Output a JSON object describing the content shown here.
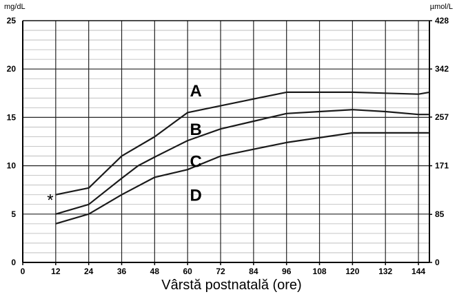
{
  "chart_data": {
    "type": "line",
    "title": "",
    "xlabel": "Vârstă postnatală (ore)",
    "ylabel_left": "mg/dL",
    "ylabel_right": "µmol/L",
    "xlim": [
      0,
      148
    ],
    "ylim": [
      0,
      25
    ],
    "x_ticks": [
      0,
      12,
      24,
      36,
      48,
      60,
      72,
      84,
      96,
      108,
      120,
      132,
      144
    ],
    "x_tick_labels": [
      "0",
      "12",
      "24",
      "36",
      "48",
      "60",
      "72",
      "84",
      "96",
      "108",
      "120",
      "132",
      "144"
    ],
    "y_ticks_left": [
      0,
      5,
      10,
      15,
      20,
      25
    ],
    "y_tick_labels_left": [
      "0",
      "5",
      "10",
      "15",
      "20",
      "25"
    ],
    "y_ticks_right": [
      0,
      4.97,
      10,
      15.03,
      20,
      25
    ],
    "y_tick_labels_right": [
      "0",
      "85",
      "171",
      "257",
      "342",
      "428"
    ],
    "grid": true,
    "minor_grid_step": 1,
    "line_color": "#1a1a1a",
    "series": [
      {
        "x": [
          12,
          24,
          36,
          48,
          60,
          72,
          84,
          96,
          108,
          120,
          132,
          144,
          148
        ],
        "y": [
          7.0,
          7.7,
          11.0,
          13.0,
          15.5,
          16.2,
          16.9,
          17.6,
          17.6,
          17.6,
          17.5,
          17.4,
          17.6
        ]
      },
      {
        "x": [
          12,
          24,
          36,
          42,
          48,
          60,
          72,
          84,
          96,
          108,
          120,
          132,
          144,
          148
        ],
        "y": [
          5.0,
          6.0,
          8.7,
          10.0,
          10.9,
          12.6,
          13.8,
          14.6,
          15.4,
          15.6,
          15.8,
          15.6,
          15.3,
          15.3
        ]
      },
      {
        "x": [
          12,
          24,
          36,
          48,
          60,
          72,
          84,
          96,
          108,
          120,
          132,
          144,
          148
        ],
        "y": [
          4.0,
          5.0,
          7.0,
          8.8,
          9.6,
          11.0,
          11.7,
          12.4,
          12.9,
          13.4,
          13.4,
          13.4,
          13.4
        ]
      }
    ],
    "zone_labels": [
      {
        "text": "A",
        "x": 63,
        "y": 17.8
      },
      {
        "text": "B",
        "x": 63,
        "y": 13.8
      },
      {
        "text": "C",
        "x": 63,
        "y": 10.5
      },
      {
        "text": "D",
        "x": 63,
        "y": 7.0
      }
    ],
    "annotations": [
      {
        "text": "*",
        "x": 10,
        "y": 6.8
      }
    ]
  }
}
